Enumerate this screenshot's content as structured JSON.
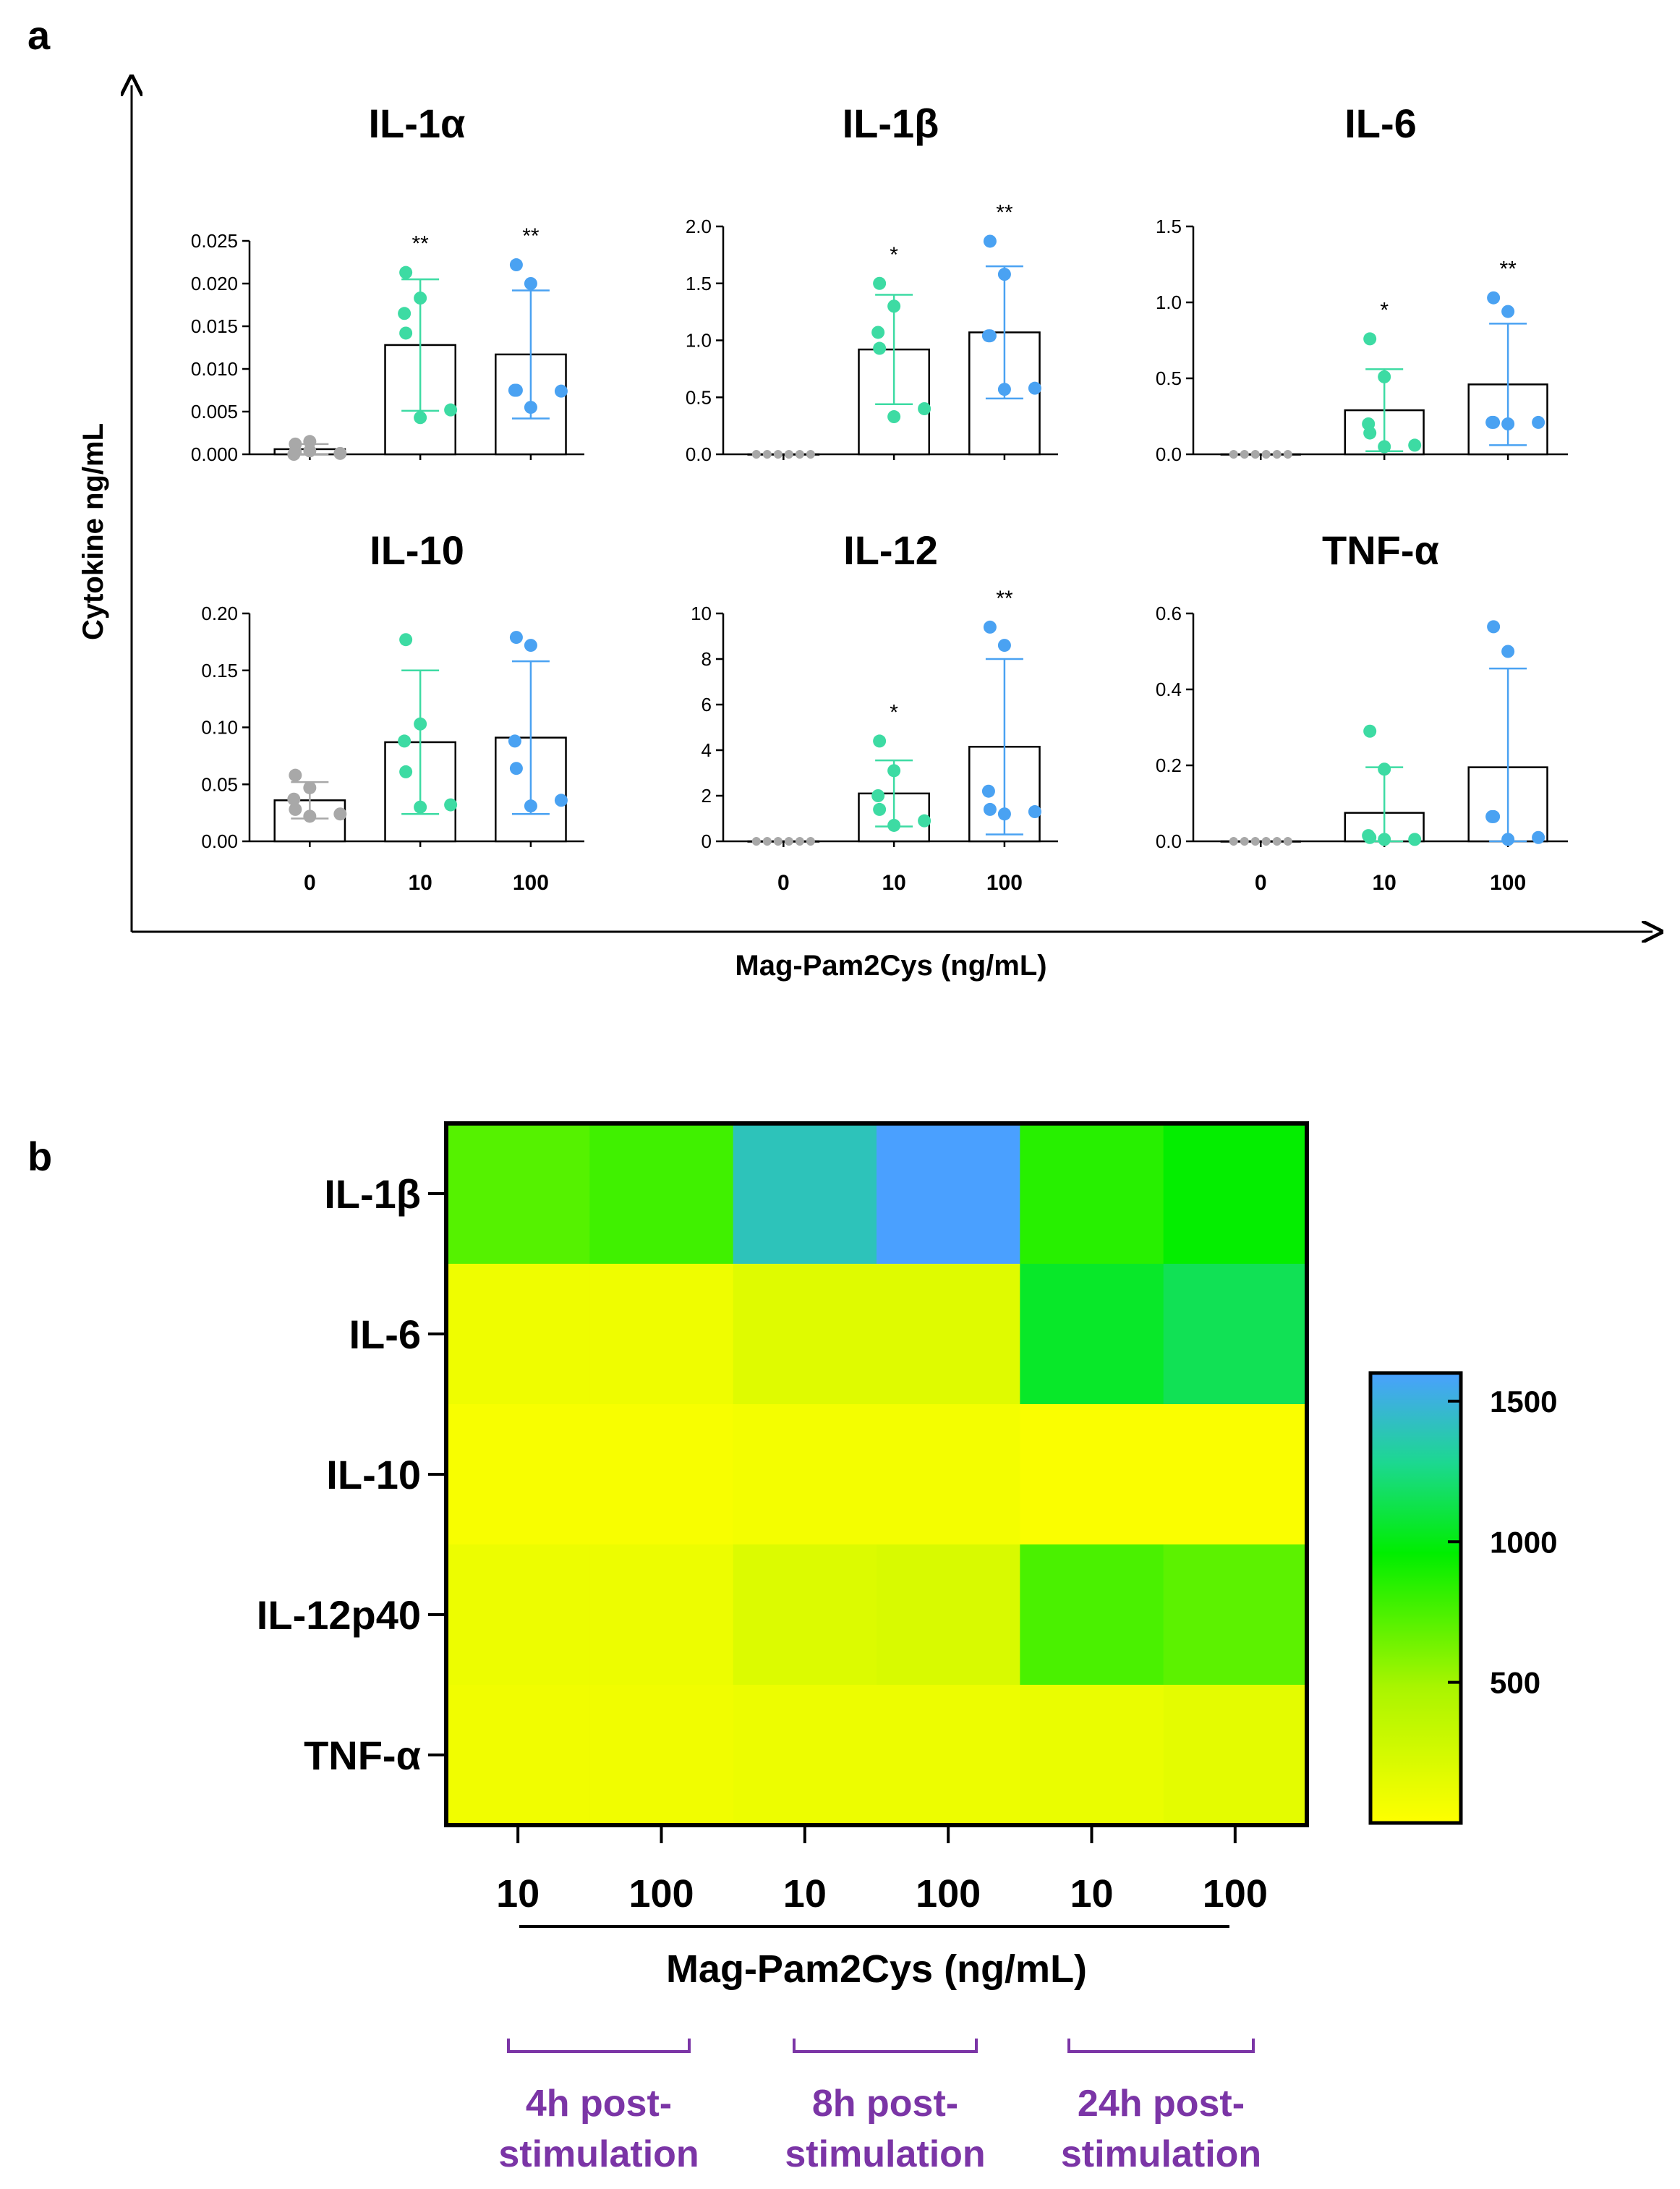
{
  "colors": {
    "control": "#a8a8a8",
    "dose10": "#3ddba3",
    "dose100": "#4aa2f2",
    "time_label": "#7b35a6",
    "heatmap_low": "#ffff00",
    "heatmap_mid": "#00ee00",
    "heatmap_high": "#4aa0ff"
  },
  "panel_a": {
    "letter": "a",
    "ylabel": "Cytokine ng/mL",
    "xlabel": "Mag-Pam2Cys (ng/mL)"
  },
  "panel_b": {
    "letter": "b"
  },
  "chart_data": [
    {
      "type": "bar",
      "title": "IL-1α",
      "categories": [
        "0",
        "10",
        "100"
      ],
      "ylim": [
        0,
        0.025
      ],
      "yticks": [
        0.0,
        0.005,
        0.01,
        0.015,
        0.02,
        0.025
      ],
      "ytick_labels": [
        "0.000",
        "0.005",
        "0.010",
        "0.015",
        "0.020",
        "0.025"
      ],
      "means": [
        0.0006,
        0.0128,
        0.0117
      ],
      "sd": [
        0.0006,
        0.0077,
        0.0075
      ],
      "significance": [
        "",
        "**",
        "**"
      ],
      "points": [
        [
          0.0003,
          0.0015,
          0.0,
          0.0012,
          0.0001,
          0.0004
        ],
        [
          0.0213,
          0.0183,
          0.0165,
          0.0142,
          0.0052,
          0.0043
        ],
        [
          0.0222,
          0.02,
          0.0075,
          0.0075,
          0.0074,
          0.0055
        ]
      ]
    },
    {
      "type": "bar",
      "title": "IL-1β",
      "categories": [
        "0",
        "10",
        "100"
      ],
      "ylim": [
        0,
        2.0
      ],
      "yticks": [
        0,
        0.5,
        1.0,
        1.5,
        2.0
      ],
      "ytick_labels": [
        "0.0",
        "0.5",
        "1.0",
        "1.5",
        "2.0"
      ],
      "means": [
        0.0,
        0.92,
        1.07
      ],
      "sd": [
        0.0,
        0.48,
        0.58
      ],
      "significance": [
        "",
        "*",
        "**"
      ],
      "points": [
        [
          0.0,
          0.0,
          0.0,
          0.0,
          0.0,
          0.0
        ],
        [
          1.5,
          1.3,
          1.07,
          0.93,
          0.4,
          0.33
        ],
        [
          1.87,
          1.58,
          1.04,
          1.04,
          0.58,
          0.57
        ]
      ]
    },
    {
      "type": "bar",
      "title": "IL-6",
      "categories": [
        "0",
        "10",
        "100"
      ],
      "ylim": [
        0,
        1.5
      ],
      "yticks": [
        0,
        0.5,
        1.0,
        1.5
      ],
      "ytick_labels": [
        "0.0",
        "0.5",
        "1.0",
        "1.5"
      ],
      "means": [
        0.0,
        0.29,
        0.46
      ],
      "sd": [
        0.0,
        0.27,
        0.4
      ],
      "significance": [
        "",
        "*",
        "**"
      ],
      "points": [
        [
          0.0,
          0.0,
          0.0,
          0.0,
          0.0,
          0.0
        ],
        [
          0.76,
          0.51,
          0.2,
          0.14,
          0.06,
          0.05
        ],
        [
          1.03,
          0.94,
          0.21,
          0.21,
          0.21,
          0.2
        ]
      ]
    },
    {
      "type": "bar",
      "title": "IL-10",
      "categories": [
        "0",
        "10",
        "100"
      ],
      "ylim": [
        0,
        0.2
      ],
      "yticks": [
        0,
        0.05,
        0.1,
        0.15,
        0.2
      ],
      "ytick_labels": [
        "0.00",
        "0.05",
        "0.10",
        "0.15",
        "0.20"
      ],
      "means": [
        0.036,
        0.087,
        0.091
      ],
      "sd": [
        0.016,
        0.063,
        0.067
      ],
      "significance": [
        "",
        "",
        ""
      ],
      "points": [
        [
          0.058,
          0.047,
          0.037,
          0.028,
          0.024,
          0.022
        ],
        [
          0.177,
          0.103,
          0.088,
          0.061,
          0.032,
          0.03
        ],
        [
          0.179,
          0.172,
          0.088,
          0.064,
          0.036,
          0.031
        ]
      ]
    },
    {
      "type": "bar",
      "title": "IL-12",
      "categories": [
        "0",
        "10",
        "100"
      ],
      "ylim": [
        0,
        10
      ],
      "yticks": [
        0,
        2,
        4,
        6,
        8,
        10
      ],
      "ytick_labels": [
        "0",
        "2",
        "4",
        "6",
        "8",
        "10"
      ],
      "means": [
        0.0,
        2.1,
        4.15
      ],
      "sd": [
        0.0,
        1.45,
        3.85
      ],
      "significance": [
        "",
        "*",
        "**"
      ],
      "points": [
        [
          0.0,
          0.0,
          0.0,
          0.0,
          0.0,
          0.0
        ],
        [
          4.4,
          3.1,
          2.0,
          1.4,
          0.9,
          0.7
        ],
        [
          9.4,
          8.6,
          2.2,
          1.4,
          1.3,
          1.2
        ]
      ]
    },
    {
      "type": "bar",
      "title": "TNF-α",
      "categories": [
        "0",
        "10",
        "100"
      ],
      "ylim": [
        0,
        0.6
      ],
      "yticks": [
        0,
        0.2,
        0.4,
        0.6
      ],
      "ytick_labels": [
        "0.0",
        "0.2",
        "0.4",
        "0.6"
      ],
      "means": [
        0.0,
        0.075,
        0.195
      ],
      "sd": [
        0.0,
        0.12,
        0.26
      ],
      "significance": [
        "",
        "",
        ""
      ],
      "points": [
        [
          0.0,
          0.0,
          0.0,
          0.0,
          0.0,
          0.0
        ],
        [
          0.29,
          0.19,
          0.015,
          0.01,
          0.005,
          0.005
        ],
        [
          0.565,
          0.5,
          0.065,
          0.065,
          0.01,
          0.005
        ]
      ]
    },
    {
      "type": "heatmap",
      "rows": [
        "IL-1β",
        "IL-6",
        "IL-10",
        "IL-12p40",
        "TNF-α"
      ],
      "columns": [
        "10",
        "100",
        "10",
        "100",
        "10",
        "100"
      ],
      "xlabel": "Mag-Pam2Cys (ng/mL)",
      "column_groups": [
        {
          "label_line1": "4h post-",
          "label_line2": "stimulation"
        },
        {
          "label_line1": "8h post-",
          "label_line2": "stimulation"
        },
        {
          "label_line1": "24h post-",
          "label_line2": "stimulation"
        }
      ],
      "values": [
        [
          720,
          780,
          1400,
          1600,
          850,
          950
        ],
        [
          90,
          90,
          180,
          180,
          1050,
          1150
        ],
        [
          40,
          40,
          60,
          60,
          30,
          30
        ],
        [
          100,
          100,
          200,
          220,
          750,
          700
        ],
        [
          80,
          80,
          100,
          100,
          120,
          150
        ]
      ],
      "colorbar": {
        "range": [
          0,
          1600
        ],
        "ticks": [
          500,
          1000,
          1500
        ],
        "tick_labels": [
          "500",
          "1000",
          "1500"
        ]
      }
    }
  ]
}
